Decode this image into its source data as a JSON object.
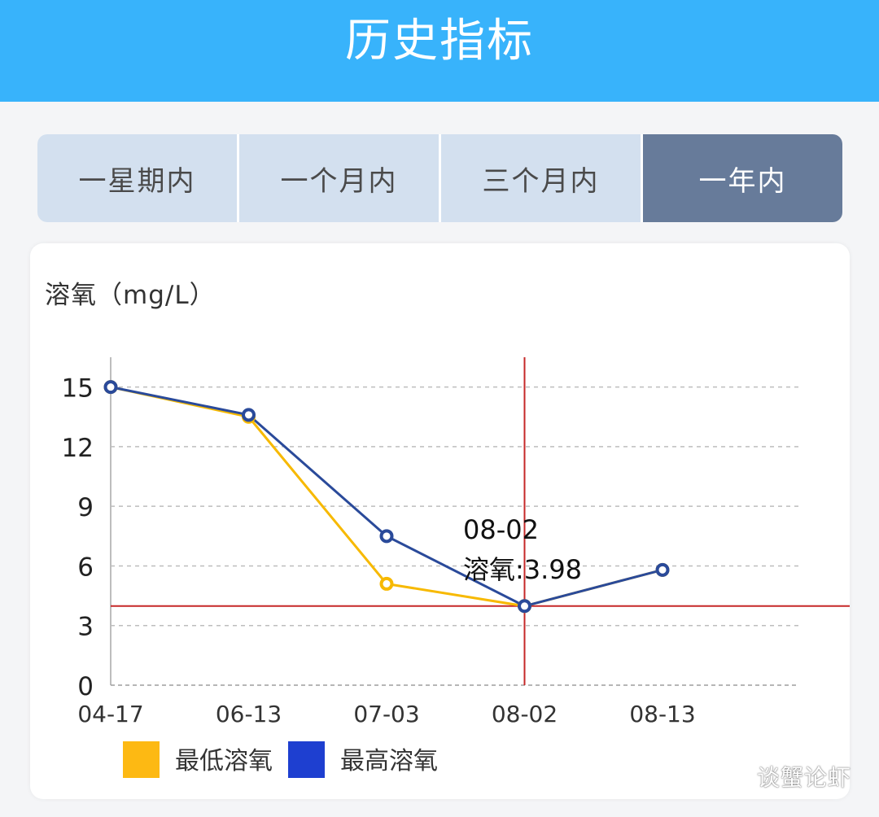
{
  "header": {
    "title": "历史指标"
  },
  "tabs": [
    {
      "label": "一星期内",
      "active": false
    },
    {
      "label": "一个月内",
      "active": false
    },
    {
      "label": "三个月内",
      "active": false
    },
    {
      "label": "一年内",
      "active": true
    }
  ],
  "chart_data": {
    "type": "line",
    "title": "溶氧（mg/L）",
    "categories": [
      "04-17",
      "06-13",
      "07-03",
      "08-02",
      "08-13"
    ],
    "y_ticks": [
      0,
      3,
      6,
      9,
      12,
      15
    ],
    "ylim": [
      0,
      16.5
    ],
    "grid": true,
    "legend_position": "bottom-left",
    "series": [
      {
        "name": "最低溶氧",
        "color": "#f7b900",
        "values": [
          15,
          13.5,
          5.1,
          3.98,
          5.8
        ]
      },
      {
        "name": "最高溶氧",
        "color": "#2a4a9a",
        "values": [
          15,
          13.6,
          7.5,
          3.98,
          5.8
        ]
      }
    ],
    "legend_colors": [
      "#fdb913",
      "#1e3fd0"
    ],
    "crosshair": {
      "category_index": 3,
      "value": 3.98,
      "color": "#c62828"
    },
    "tooltip": {
      "line1": "08-02",
      "line2": "溶氧:3.98"
    }
  },
  "watermark": {
    "text": "谈蟹论虾"
  }
}
